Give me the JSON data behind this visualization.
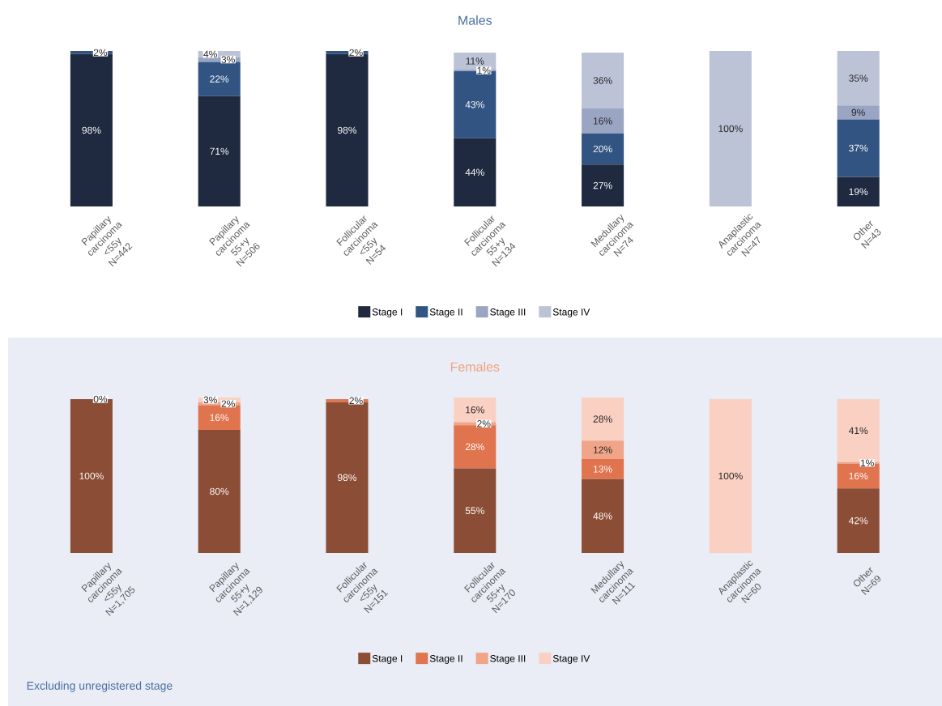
{
  "chart_data": [
    {
      "type": "bar",
      "title": "Males",
      "stacked": true,
      "legend": "bottom",
      "categories": [
        "Papillary carcinoma <55y N=442",
        "Papillary carcinoma 55+y N=506",
        "Follicular carcinoma <55y N=54",
        "Follicular carcinoma 55+y N=134",
        "Medullary carcinoma N=74",
        "Anaplastic carcinoma N=47",
        "Other N=43"
      ],
      "series": [
        {
          "name": "Stage I",
          "color": "#1f2a40",
          "values": [
            98,
            71,
            98,
            44,
            27,
            0,
            19
          ],
          "value_labels": [
            "98%",
            "71%",
            "98%",
            "44%",
            "27%",
            null,
            "19%"
          ]
        },
        {
          "name": "Stage II",
          "color": "#325483",
          "values": [
            2,
            22,
            2,
            43,
            20,
            0,
            37
          ],
          "value_labels": [
            "2%",
            "22%",
            "2%",
            "43%",
            "20%",
            null,
            "37%"
          ]
        },
        {
          "name": "Stage III",
          "color": "#9aa5c4",
          "values": [
            0,
            3,
            0,
            1,
            16,
            0,
            9
          ],
          "value_labels": [
            null,
            "3%",
            null,
            "1%",
            "16%",
            null,
            "9%"
          ]
        },
        {
          "name": "Stage IV",
          "color": "#bcc3d6",
          "values": [
            0,
            4,
            0,
            11,
            36,
            100,
            35
          ],
          "value_labels": [
            null,
            "4%",
            null,
            "11%",
            "36%",
            "100%",
            "35%"
          ]
        }
      ]
    },
    {
      "type": "bar",
      "title": "Females",
      "stacked": true,
      "legend": "bottom",
      "categories": [
        "Papillary carcinoma <55y N=1,705",
        "Papillary carcinoma 55+y N=1,129",
        "Follicular carcinoma <55y N=151",
        "Follicular carcinoma 55+y N=170",
        "Medullary carcinoma N=111",
        "Anaplastic carcinoma N=60",
        "Other N=69"
      ],
      "series": [
        {
          "name": "Stage I",
          "color": "#8c4d37",
          "values": [
            100,
            80,
            98,
            55,
            48,
            0,
            42
          ],
          "value_labels": [
            "100%",
            "80%",
            "98%",
            "55%",
            "48%",
            null,
            "42%"
          ]
        },
        {
          "name": "Stage II",
          "color": "#e0744f",
          "values": [
            0,
            16,
            2,
            28,
            13,
            0,
            16
          ],
          "value_labels": [
            "0%",
            "16%",
            "2%",
            "28%",
            "13%",
            null,
            "16%"
          ]
        },
        {
          "name": "Stage III",
          "color": "#f0a488",
          "values": [
            0,
            2,
            0,
            2,
            12,
            0,
            1
          ],
          "value_labels": [
            null,
            "2%",
            null,
            "2%",
            "12%",
            null,
            "1%"
          ]
        },
        {
          "name": "Stage IV",
          "color": "#fad0c3",
          "values": [
            0,
            3,
            0,
            16,
            28,
            100,
            41
          ],
          "value_labels": [
            null,
            "3%",
            null,
            "16%",
            "28%",
            "100%",
            "41%"
          ]
        }
      ],
      "annotations": [
        "Excluding unregistered stage"
      ]
    }
  ]
}
